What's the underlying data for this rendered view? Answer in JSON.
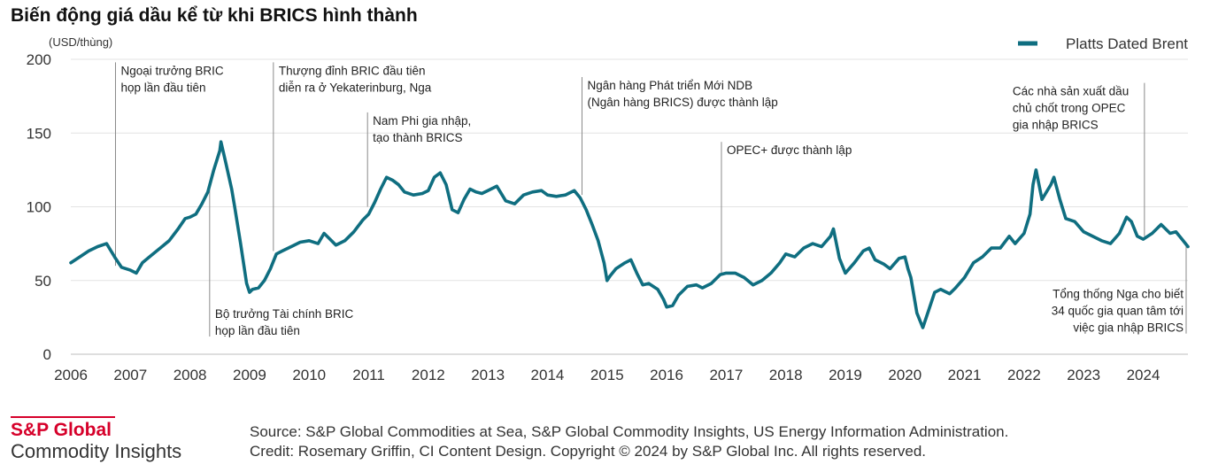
{
  "chart_data": {
    "type": "line",
    "title": "Biến động giá dầu kể từ khi BRICS hình thành",
    "ylabel": "(USD/thùng)",
    "xlabel": "",
    "xlim": [
      2006.0,
      2024.75
    ],
    "ylim": [
      0,
      200
    ],
    "yticks": [
      0,
      50,
      100,
      150,
      200
    ],
    "xticks": [
      2006,
      2007,
      2008,
      2009,
      2010,
      2011,
      2012,
      2013,
      2014,
      2015,
      2016,
      2017,
      2018,
      2019,
      2020,
      2021,
      2022,
      2023,
      2024
    ],
    "grid": true,
    "legend_position": "top-right",
    "series": [
      {
        "name": "Platts Dated Brent",
        "color": "#0f6e80",
        "points": [
          [
            2006.0,
            62
          ],
          [
            2006.15,
            66
          ],
          [
            2006.3,
            70
          ],
          [
            2006.45,
            73
          ],
          [
            2006.6,
            75
          ],
          [
            2006.75,
            65
          ],
          [
            2006.85,
            59
          ],
          [
            2007.0,
            57
          ],
          [
            2007.1,
            55
          ],
          [
            2007.2,
            62
          ],
          [
            2007.35,
            67
          ],
          [
            2007.5,
            72
          ],
          [
            2007.65,
            77
          ],
          [
            2007.8,
            85
          ],
          [
            2007.92,
            92
          ],
          [
            2008.0,
            93
          ],
          [
            2008.1,
            95
          ],
          [
            2008.2,
            102
          ],
          [
            2008.3,
            110
          ],
          [
            2008.4,
            125
          ],
          [
            2008.5,
            138
          ],
          [
            2008.52,
            144
          ],
          [
            2008.6,
            130
          ],
          [
            2008.7,
            112
          ],
          [
            2008.75,
            100
          ],
          [
            2008.85,
            75
          ],
          [
            2008.95,
            48
          ],
          [
            2009.0,
            42
          ],
          [
            2009.05,
            44
          ],
          [
            2009.15,
            45
          ],
          [
            2009.25,
            50
          ],
          [
            2009.35,
            58
          ],
          [
            2009.45,
            68
          ],
          [
            2009.55,
            70
          ],
          [
            2009.7,
            73
          ],
          [
            2009.85,
            76
          ],
          [
            2010.0,
            77
          ],
          [
            2010.15,
            75
          ],
          [
            2010.25,
            82
          ],
          [
            2010.35,
            78
          ],
          [
            2010.45,
            74
          ],
          [
            2010.6,
            77
          ],
          [
            2010.75,
            83
          ],
          [
            2010.9,
            91
          ],
          [
            2011.0,
            95
          ],
          [
            2011.1,
            103
          ],
          [
            2011.2,
            112
          ],
          [
            2011.3,
            120
          ],
          [
            2011.4,
            118
          ],
          [
            2011.5,
            115
          ],
          [
            2011.6,
            110
          ],
          [
            2011.75,
            108
          ],
          [
            2011.9,
            109
          ],
          [
            2012.0,
            111
          ],
          [
            2012.1,
            120
          ],
          [
            2012.2,
            123
          ],
          [
            2012.3,
            115
          ],
          [
            2012.4,
            98
          ],
          [
            2012.5,
            96
          ],
          [
            2012.6,
            105
          ],
          [
            2012.7,
            112
          ],
          [
            2012.8,
            110
          ],
          [
            2012.9,
            109
          ],
          [
            2013.0,
            111
          ],
          [
            2013.15,
            114
          ],
          [
            2013.3,
            104
          ],
          [
            2013.45,
            102
          ],
          [
            2013.6,
            108
          ],
          [
            2013.75,
            110
          ],
          [
            2013.9,
            111
          ],
          [
            2014.0,
            108
          ],
          [
            2014.15,
            107
          ],
          [
            2014.3,
            108
          ],
          [
            2014.45,
            111
          ],
          [
            2014.55,
            106
          ],
          [
            2014.65,
            98
          ],
          [
            2014.75,
            88
          ],
          [
            2014.85,
            77
          ],
          [
            2014.95,
            62
          ],
          [
            2015.0,
            50
          ],
          [
            2015.05,
            53
          ],
          [
            2015.15,
            58
          ],
          [
            2015.3,
            62
          ],
          [
            2015.4,
            64
          ],
          [
            2015.5,
            55
          ],
          [
            2015.6,
            47
          ],
          [
            2015.7,
            48
          ],
          [
            2015.85,
            44
          ],
          [
            2015.95,
            37
          ],
          [
            2016.0,
            32
          ],
          [
            2016.1,
            33
          ],
          [
            2016.2,
            40
          ],
          [
            2016.35,
            46
          ],
          [
            2016.5,
            47
          ],
          [
            2016.6,
            45
          ],
          [
            2016.75,
            48
          ],
          [
            2016.9,
            54
          ],
          [
            2017.0,
            55
          ],
          [
            2017.15,
            55
          ],
          [
            2017.3,
            52
          ],
          [
            2017.45,
            47
          ],
          [
            2017.6,
            50
          ],
          [
            2017.75,
            55
          ],
          [
            2017.9,
            62
          ],
          [
            2018.0,
            68
          ],
          [
            2018.15,
            66
          ],
          [
            2018.3,
            72
          ],
          [
            2018.45,
            75
          ],
          [
            2018.6,
            73
          ],
          [
            2018.75,
            80
          ],
          [
            2018.8,
            85
          ],
          [
            2018.9,
            65
          ],
          [
            2019.0,
            55
          ],
          [
            2019.15,
            62
          ],
          [
            2019.3,
            70
          ],
          [
            2019.4,
            72
          ],
          [
            2019.5,
            64
          ],
          [
            2019.65,
            61
          ],
          [
            2019.75,
            58
          ],
          [
            2019.9,
            65
          ],
          [
            2020.0,
            66
          ],
          [
            2020.05,
            58
          ],
          [
            2020.1,
            52
          ],
          [
            2020.2,
            28
          ],
          [
            2020.3,
            18
          ],
          [
            2020.4,
            30
          ],
          [
            2020.5,
            42
          ],
          [
            2020.6,
            44
          ],
          [
            2020.75,
            41
          ],
          [
            2020.85,
            45
          ],
          [
            2021.0,
            52
          ],
          [
            2021.15,
            62
          ],
          [
            2021.3,
            66
          ],
          [
            2021.45,
            72
          ],
          [
            2021.6,
            72
          ],
          [
            2021.75,
            80
          ],
          [
            2021.85,
            75
          ],
          [
            2022.0,
            82
          ],
          [
            2022.1,
            95
          ],
          [
            2022.15,
            115
          ],
          [
            2022.2,
            125
          ],
          [
            2022.3,
            105
          ],
          [
            2022.45,
            115
          ],
          [
            2022.5,
            120
          ],
          [
            2022.6,
            105
          ],
          [
            2022.7,
            92
          ],
          [
            2022.85,
            90
          ],
          [
            2023.0,
            83
          ],
          [
            2023.15,
            80
          ],
          [
            2023.3,
            77
          ],
          [
            2023.45,
            75
          ],
          [
            2023.6,
            82
          ],
          [
            2023.72,
            93
          ],
          [
            2023.8,
            90
          ],
          [
            2023.9,
            80
          ],
          [
            2024.0,
            78
          ],
          [
            2024.15,
            82
          ],
          [
            2024.3,
            88
          ],
          [
            2024.45,
            82
          ],
          [
            2024.55,
            83
          ],
          [
            2024.65,
            78
          ],
          [
            2024.75,
            73
          ]
        ]
      }
    ],
    "annotations": [
      {
        "x": 2006.75,
        "y_from": 60,
        "y_to": 198,
        "text_side": "above",
        "lines": [
          "Ngoại trưởng BRIC",
          "họp lần đầu tiên"
        ]
      },
      {
        "x": 2008.33,
        "y_from": 115,
        "y_to": 12,
        "text_side": "below",
        "lines": [
          "Bộ trưởng Tài chính BRIC",
          "họp lần đầu tiên"
        ]
      },
      {
        "x": 2009.4,
        "y_from": 70,
        "y_to": 198,
        "text_side": "above",
        "lines": [
          "Thượng đỉnh BRIC đầu tiên",
          "diễn ra ở Yekaterinburg, Nga"
        ]
      },
      {
        "x": 2010.98,
        "y_from": 100,
        "y_to": 164,
        "text_side": "above",
        "lines": [
          "Nam Phi gia nhập,",
          "tạo thành BRICS"
        ]
      },
      {
        "x": 2014.58,
        "y_from": 108,
        "y_to": 188,
        "text_side": "above",
        "lines": [
          "Ngân hàng Phát triển Mới NDB",
          "(Ngân hàng BRICS) được thành lập"
        ]
      },
      {
        "x": 2016.92,
        "y_from": 55,
        "y_to": 144,
        "text_side": "above",
        "lines": [
          "OPEC+ được thành lập"
        ]
      },
      {
        "x": 2024.02,
        "y_from": 80,
        "y_to": 184,
        "text_side": "above",
        "lines": [
          "Các nhà sản xuất dầu",
          "chủ chốt trong OPEC",
          "gia nhập BRICS"
        ]
      },
      {
        "x": 2024.72,
        "y_from": 76,
        "y_to": 14,
        "text_side": "below",
        "lines": [
          "Tổng thống Nga cho biết",
          "34 quốc gia quan tâm tới",
          "việc gia nhập BRICS"
        ]
      }
    ]
  },
  "branding": {
    "brand": "S&P Global",
    "sub": "Commodity Insights",
    "brand_color": "#d6002a"
  },
  "footer": {
    "source": "Source: S&P Global Commodities at Sea, S&P Global Commodity Insights, US Energy Information Administration.",
    "credit": "Credit: Rosemary Griffin, CI Content Design.  Copyright © 2024 by S&P Global Inc.  All rights reserved."
  }
}
